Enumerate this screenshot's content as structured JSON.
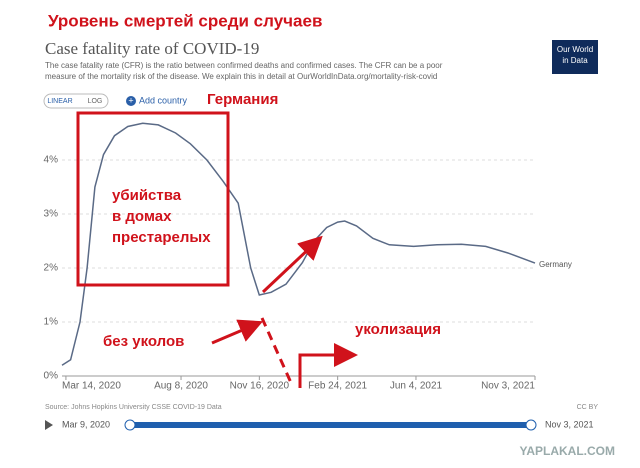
{
  "overlay": {
    "headline": "Уровень смертей среди случаев",
    "country_label": "Германия",
    "notes": [
      "убийства",
      "в домах",
      "престарелых",
      "без уколов",
      "уколизация"
    ]
  },
  "logo": [
    "Our World",
    "in Data"
  ],
  "controls": {
    "linear": "LINEAR",
    "log": "LOG",
    "add": "Add country",
    "start": "Mar 9, 2020",
    "end": "Nov 3, 2021"
  },
  "watermark": "YAPLAKAL.COM",
  "chart_data": {
    "type": "line",
    "title": "Case fatality rate of COVID-19",
    "subtitle": [
      "The case fatality rate (CFR) is the ratio between confirmed deaths and confirmed cases. The CFR can be a poor",
      "measure of the mortality risk of the disease. We explain this in detail at OurWorldInData.org/mortality-risk-covid"
    ],
    "source": "Source: Johns Hopkins University CSSE COVID-19 Data",
    "license": "CC BY",
    "x": [
      "2020-03-09",
      "2020-03-20",
      "2020-04-01",
      "2020-04-10",
      "2020-04-20",
      "2020-05-01",
      "2020-05-15",
      "2020-06-01",
      "2020-06-20",
      "2020-07-10",
      "2020-08-01",
      "2020-08-20",
      "2020-09-10",
      "2020-10-01",
      "2020-10-20",
      "2020-11-05",
      "2020-11-16",
      "2020-12-01",
      "2020-12-20",
      "2021-01-10",
      "2021-01-25",
      "2021-02-10",
      "2021-02-24",
      "2021-03-05",
      "2021-03-20",
      "2021-04-10",
      "2021-05-01",
      "2021-06-01",
      "2021-07-01",
      "2021-08-01",
      "2021-09-01",
      "2021-10-01",
      "2021-11-03"
    ],
    "series": [
      {
        "name": "Germany",
        "color": "#5a6a86",
        "values": [
          0.2,
          0.3,
          1.0,
          2.0,
          3.5,
          4.1,
          4.45,
          4.62,
          4.68,
          4.65,
          4.5,
          4.3,
          4.0,
          3.6,
          3.2,
          2.0,
          1.5,
          1.55,
          1.7,
          2.1,
          2.5,
          2.75,
          2.85,
          2.87,
          2.78,
          2.55,
          2.43,
          2.4,
          2.43,
          2.44,
          2.4,
          2.27,
          2.09
        ]
      }
    ],
    "xlim": [
      "2020-03-09",
      "2021-11-03"
    ],
    "xticks": [
      {
        "value": "2020-03-14",
        "label": "Mar 14, 2020"
      },
      {
        "value": "2020-08-08",
        "label": "Aug 8, 2020"
      },
      {
        "value": "2020-11-16",
        "label": "Nov 16, 2020"
      },
      {
        "value": "2021-02-24",
        "label": "Feb 24, 2021"
      },
      {
        "value": "2021-06-04",
        "label": "Jun 4, 2021"
      },
      {
        "value": "2021-11-03",
        "label": "Nov 3, 2021"
      }
    ],
    "ylim": [
      0,
      5
    ],
    "yticks": [
      {
        "value": 0,
        "label": "0%"
      },
      {
        "value": 1,
        "label": "1%"
      },
      {
        "value": 2,
        "label": "2%"
      },
      {
        "value": 3,
        "label": "3%"
      },
      {
        "value": 4,
        "label": "4%"
      }
    ],
    "grid": true
  }
}
